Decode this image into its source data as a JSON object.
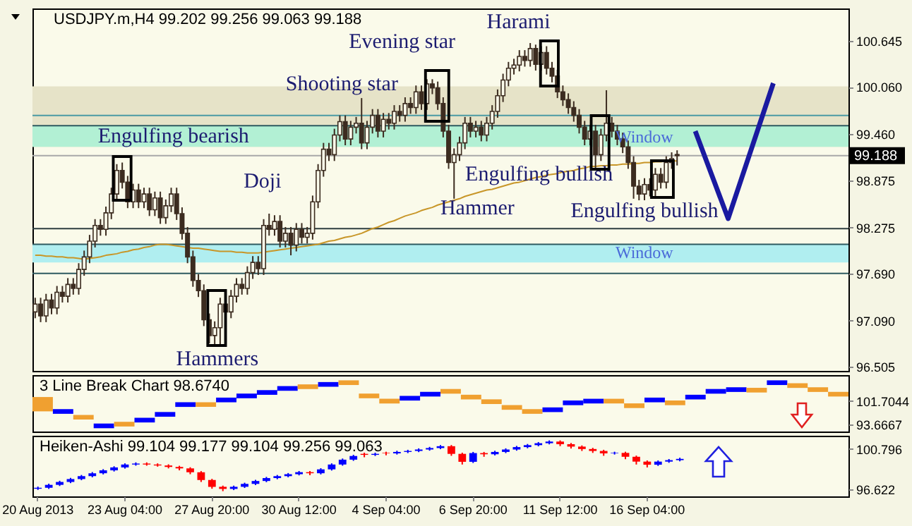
{
  "chart_data": [
    {
      "type": "candlestick",
      "title": "USDJPY.m,H4  99.202 99.256 99.063 99.188",
      "tick_labels": "y",
      "color": "#3c2c20",
      "categories": [
        null,
        null,
        null,
        null,
        null,
        null,
        null,
        null,
        null,
        null,
        null,
        null,
        null,
        null,
        null,
        null,
        null,
        null,
        null,
        null,
        null,
        null,
        null,
        null,
        null,
        null,
        null,
        null,
        null,
        null,
        null,
        null,
        null,
        null,
        null,
        null,
        null,
        null,
        null,
        null,
        null,
        null,
        null,
        null,
        null,
        null,
        null,
        null,
        null,
        null,
        null,
        null,
        null,
        null,
        null,
        null,
        null,
        null,
        null,
        null,
        null,
        null,
        null,
        null,
        null,
        null,
        null,
        null,
        null,
        null,
        null,
        null,
        null,
        null,
        null,
        null,
        null,
        null,
        null,
        null,
        null,
        null,
        null,
        null,
        null,
        null,
        null,
        null,
        null,
        null,
        null,
        null,
        null,
        null,
        null,
        null,
        null,
        null,
        null,
        null,
        null,
        null,
        null,
        null,
        null,
        null,
        null,
        null,
        null,
        null,
        null,
        null,
        null,
        null,
        null,
        null,
        null,
        null,
        null,
        null,
        null,
        null,
        null,
        null,
        null,
        null,
        null,
        null,
        null,
        null,
        null,
        null,
        null,
        null,
        null,
        null,
        null,
        null,
        null,
        null,
        null,
        null,
        null,
        null,
        null,
        null,
        null,
        null,
        null,
        null
      ],
      "ohlc": [
        [
          97.2,
          97.38,
          97.12,
          97.3
        ],
        [
          97.3,
          97.38,
          97.07,
          97.15
        ],
        [
          97.15,
          97.43,
          97.07,
          97.35
        ],
        [
          97.35,
          97.43,
          97.17,
          97.25
        ],
        [
          97.25,
          97.53,
          97.17,
          97.45
        ],
        [
          97.45,
          97.53,
          97.32,
          97.4
        ],
        [
          97.4,
          97.63,
          97.32,
          97.55
        ],
        [
          97.55,
          97.63,
          97.42,
          97.5
        ],
        [
          97.5,
          97.82,
          97.42,
          97.74
        ],
        [
          97.74,
          97.98,
          97.66,
          97.9
        ],
        [
          97.9,
          98.18,
          97.82,
          98.1
        ],
        [
          98.1,
          98.38,
          98.02,
          98.3
        ],
        [
          98.3,
          98.38,
          98.17,
          98.25
        ],
        [
          98.25,
          98.54,
          98.17,
          98.46
        ],
        [
          98.46,
          98.78,
          98.38,
          98.7
        ],
        [
          98.7,
          99.08,
          98.62,
          99
        ],
        [
          99,
          99.1,
          98.77,
          98.85
        ],
        [
          98.85,
          98.93,
          98.52,
          98.6
        ],
        [
          98.6,
          98.83,
          98.52,
          98.75
        ],
        [
          98.75,
          98.83,
          98.52,
          98.6
        ],
        [
          98.6,
          98.78,
          98.52,
          98.7
        ],
        [
          98.7,
          98.78,
          98.42,
          98.5
        ],
        [
          98.5,
          98.73,
          98.42,
          98.65
        ],
        [
          98.65,
          98.73,
          98.32,
          98.4
        ],
        [
          98.4,
          98.63,
          98.32,
          98.55
        ],
        [
          98.55,
          98.78,
          98.47,
          98.7
        ],
        [
          98.7,
          98.78,
          98.37,
          98.45
        ],
        [
          98.45,
          98.53,
          98.12,
          98.2
        ],
        [
          98.2,
          98.28,
          97.82,
          97.9
        ],
        [
          97.9,
          97.98,
          97.52,
          97.6
        ],
        [
          97.6,
          97.68,
          97.39,
          97.47
        ],
        [
          97.47,
          97.55,
          97.02,
          97.1
        ],
        [
          97.1,
          97.18,
          96.8,
          96.9
        ],
        [
          96.9,
          97.08,
          96.76,
          97
        ],
        [
          97,
          97.38,
          96.76,
          97.3
        ],
        [
          97.3,
          97.38,
          97.12,
          97.2
        ],
        [
          97.2,
          97.48,
          97.12,
          97.4
        ],
        [
          97.4,
          97.63,
          97.32,
          97.55
        ],
        [
          97.55,
          97.63,
          97.42,
          97.5
        ],
        [
          97.5,
          97.78,
          97.42,
          97.7
        ],
        [
          97.7,
          97.91,
          97.62,
          97.83
        ],
        [
          97.83,
          97.91,
          97.67,
          97.75
        ],
        [
          97.75,
          98.38,
          97.67,
          98.3
        ],
        [
          98.3,
          98.45,
          98.17,
          98.25
        ],
        [
          98.25,
          98.43,
          98.17,
          98.35
        ],
        [
          98.35,
          98.43,
          98.02,
          98.1
        ],
        [
          98.1,
          98.28,
          98.02,
          98.2
        ],
        [
          98.2,
          98.28,
          97.92,
          98.05
        ],
        [
          98.05,
          98.33,
          97.97,
          98.25
        ],
        [
          98.25,
          98.33,
          98.07,
          98.15
        ],
        [
          98.15,
          98.28,
          98.07,
          98.2
        ],
        [
          98.2,
          98.68,
          98.12,
          98.6
        ],
        [
          98.6,
          99.08,
          98.52,
          99
        ],
        [
          99,
          99.35,
          98.92,
          99.27
        ],
        [
          99.27,
          99.35,
          99.12,
          99.2
        ],
        [
          99.2,
          99.53,
          99.12,
          99.45
        ],
        [
          99.45,
          99.7,
          99.37,
          99.62
        ],
        [
          99.62,
          99.7,
          99.32,
          99.4
        ],
        [
          99.4,
          99.63,
          99.32,
          99.55
        ],
        [
          99.55,
          99.68,
          99.47,
          99.6
        ],
        [
          99.6,
          99.92,
          99.27,
          99.35
        ],
        [
          99.35,
          99.63,
          99.27,
          99.55
        ],
        [
          99.55,
          99.78,
          99.47,
          99.7
        ],
        [
          99.7,
          99.78,
          99.42,
          99.5
        ],
        [
          99.5,
          99.73,
          99.42,
          99.65
        ],
        [
          99.65,
          99.73,
          99.52,
          99.6
        ],
        [
          99.6,
          99.83,
          99.52,
          99.75
        ],
        [
          99.75,
          99.83,
          99.62,
          99.7
        ],
        [
          99.7,
          99.93,
          99.62,
          99.85
        ],
        [
          99.85,
          99.93,
          99.72,
          99.8
        ],
        [
          99.8,
          100.08,
          99.72,
          100
        ],
        [
          100,
          100.08,
          99.77,
          99.85
        ],
        [
          99.85,
          100.16,
          99.77,
          100.1
        ],
        [
          100.1,
          100.16,
          99.97,
          100.05
        ],
        [
          100.05,
          100.13,
          99.77,
          99.85
        ],
        [
          99.85,
          99.93,
          99.42,
          99.5
        ],
        [
          99.5,
          99.58,
          99.02,
          99.1
        ],
        [
          99.1,
          99.28,
          98.64,
          99.2
        ],
        [
          99.2,
          99.43,
          99.12,
          99.35
        ],
        [
          99.35,
          99.68,
          99.27,
          99.6
        ],
        [
          99.6,
          99.68,
          99.42,
          99.5
        ],
        [
          99.5,
          99.63,
          99.42,
          99.55
        ],
        [
          99.55,
          99.63,
          99.37,
          99.45
        ],
        [
          99.45,
          99.68,
          99.37,
          99.6
        ],
        [
          99.6,
          99.83,
          99.52,
          99.75
        ],
        [
          99.75,
          100.03,
          99.67,
          99.95
        ],
        [
          99.95,
          100.23,
          99.87,
          100.15
        ],
        [
          100.15,
          100.38,
          100.07,
          100.3
        ],
        [
          100.3,
          100.42,
          100.22,
          100.34
        ],
        [
          100.34,
          100.53,
          100.26,
          100.45
        ],
        [
          100.45,
          100.53,
          100.32,
          100.4
        ],
        [
          100.4,
          100.62,
          100.32,
          100.55
        ],
        [
          100.55,
          100.6,
          100.27,
          100.35
        ],
        [
          100.35,
          100.58,
          100.27,
          100.5
        ],
        [
          100.5,
          100.58,
          100.22,
          100.3
        ],
        [
          100.3,
          100.38,
          100.12,
          100.2
        ],
        [
          100.2,
          100.28,
          99.92,
          100
        ],
        [
          100,
          100.08,
          99.82,
          99.9
        ],
        [
          99.9,
          99.98,
          99.72,
          99.8
        ],
        [
          99.8,
          99.88,
          99.62,
          99.7
        ],
        [
          99.7,
          99.78,
          99.47,
          99.55
        ],
        [
          99.55,
          99.63,
          99.32,
          99.4
        ],
        [
          99.4,
          99.58,
          99.32,
          99.5
        ],
        [
          99.5,
          99.58,
          99.03,
          99.2
        ],
        [
          99.2,
          99.53,
          99.12,
          99.45
        ],
        [
          99.45,
          100.02,
          99.37,
          99.6
        ],
        [
          99.6,
          99.68,
          99.42,
          99.5
        ],
        [
          99.5,
          99.58,
          99.32,
          99.4
        ],
        [
          99.4,
          99.48,
          99.22,
          99.3
        ],
        [
          99.3,
          99.38,
          99.02,
          99.1
        ],
        [
          99.1,
          99.18,
          98.64,
          98.8
        ],
        [
          98.8,
          98.88,
          98.62,
          98.7
        ],
        [
          98.7,
          98.9,
          98.62,
          98.82
        ],
        [
          98.82,
          98.9,
          98.67,
          98.75
        ],
        [
          98.75,
          99.03,
          98.67,
          98.95
        ],
        [
          98.95,
          99.03,
          98.77,
          98.85
        ],
        [
          98.85,
          99.18,
          98.77,
          99.1
        ],
        [
          99.1,
          99.23,
          99.02,
          99.15
        ],
        [
          99.202,
          99.256,
          99.063,
          99.188
        ],
        null,
        null,
        null,
        null,
        null,
        null,
        null,
        null,
        null,
        null,
        null,
        null,
        null,
        null,
        null,
        null,
        null,
        null,
        null,
        null,
        null,
        null,
        null,
        null,
        null,
        null,
        null,
        null,
        null,
        null,
        null
      ],
      "series": [
        {
          "type": "line",
          "color": "#c89628",
          "values": [
            97.92,
            97.92,
            97.91,
            97.91,
            97.9,
            97.9,
            97.89,
            97.89,
            97.88,
            97.87,
            97.88,
            97.89,
            97.9,
            97.92,
            97.93,
            97.94,
            97.96,
            97.97,
            97.99,
            98,
            98.02,
            98.03,
            98.05,
            98.06,
            98.06,
            98.05,
            98.04,
            98.03,
            98.02,
            98.01,
            98.01,
            98,
            97.99,
            97.98,
            97.97,
            97.97,
            97.97,
            97.96,
            97.96,
            97.95,
            97.95,
            97.95,
            97.96,
            97.97,
            97.98,
            97.99,
            98,
            98.01,
            98.02,
            98.03,
            98.04,
            98.05,
            98.06,
            98.08,
            98.1,
            98.11,
            98.13,
            98.15,
            98.16,
            98.18,
            98.2,
            98.23,
            98.26,
            98.28,
            98.31,
            98.34,
            98.36,
            98.39,
            98.42,
            98.44,
            98.46,
            98.49,
            98.51,
            98.53,
            98.56,
            98.58,
            98.6,
            98.62,
            98.64,
            98.67,
            98.69,
            98.71,
            98.73,
            98.75,
            98.76,
            98.78,
            98.8,
            98.82,
            98.84,
            98.85,
            98.87,
            98.89,
            98.91,
            98.92,
            98.94,
            98.95,
            98.96,
            98.98,
            98.99,
            99,
            99.02,
            99.03,
            99.05,
            99.05,
            99.06,
            99.06,
            99.07,
            99.07,
            99.08,
            99.08,
            99.09,
            99.09,
            99.1,
            99.1,
            99.11,
            99.11,
            99.12,
            99.12,
            99.12,
            null,
            null,
            null,
            null,
            null,
            null,
            null,
            null,
            null,
            null,
            null,
            null,
            null,
            null,
            null,
            null,
            null,
            null,
            null,
            null,
            null,
            null,
            null,
            null,
            null,
            null,
            null,
            null,
            null,
            null,
            null
          ]
        }
      ],
      "ylim": [
        96.45,
        101.06
      ],
      "yticks": [
        100.645,
        {
          "value": 100.06,
          "label": "100.060"
        },
        {
          "value": 99.46,
          "label": "99.460"
        },
        98.875,
        98.275,
        {
          "value": 97.69,
          "label": "97.690"
        },
        {
          "value": 97.09,
          "label": "97.090"
        },
        96.505
      ],
      "bands": [
        {
          "axis": "y",
          "from": 99.3,
          "to": 100.07,
          "color": "#e6e3c8"
        },
        {
          "axis": "y",
          "from": 99.3,
          "to": 99.57,
          "color": "#b2f0d4",
          "label": "Window"
        },
        {
          "axis": "y",
          "from": 97.83,
          "to": 98.06,
          "color": "#b0eef0",
          "label": "Window"
        }
      ],
      "ref_lines": [
        {
          "axis": "y",
          "value": 99.7,
          "color": "#4a9aa4"
        },
        {
          "axis": "y",
          "value": 99.57,
          "color": "#2e5a60"
        },
        {
          "axis": "y",
          "value": 98.26,
          "color": "#2e3e40"
        },
        {
          "axis": "y",
          "value": 98.06,
          "color": "#2e5a60"
        },
        {
          "axis": "y",
          "value": 97.69,
          "color": "#2e5a60"
        },
        {
          "axis": "y",
          "value": 99.188,
          "label": "99.188",
          "color": "#a8a8a8"
        }
      ],
      "annotations": [
        "Engulfing bearish",
        "Doji",
        "Shooting star",
        "Evening star",
        "Hammer",
        "Harami",
        "Engulfing bullish",
        "Engulfing bullish",
        "Hammers"
      ]
    },
    {
      "type": "bar",
      "title": "3 Line Break Chart 98.6740",
      "tick_labels": "y",
      "categories": [
        null,
        null,
        null,
        null,
        null,
        null,
        null,
        null,
        null,
        null,
        null,
        null,
        null,
        null,
        null,
        null,
        null,
        null,
        null,
        null,
        null,
        null,
        null,
        null,
        null,
        null,
        null,
        null,
        null,
        null,
        null,
        null,
        null,
        null,
        null,
        null,
        null,
        null,
        null,
        null
      ],
      "base": [
        98.2,
        97.36,
        95.39,
        92.43,
        93.02,
        94.4,
        96.37,
        99.72,
        99.72,
        101.3,
        102.68,
        103.86,
        105.24,
        105.83,
        106.62,
        107.21,
        102.68,
        100.9,
        101.89,
        103.27,
        104.25,
        102.28,
        100.71,
        98.74,
        97.36,
        97.95,
        100.31,
        100.9,
        100.9,
        99.33,
        101.3,
        100.31,
        102.28,
        104.25,
        104.84,
        104.65,
        107.21,
        106.22,
        104.84,
        103.27
      ],
      "values": [
        4.9,
        1.6,
        1.6,
        1.6,
        1.6,
        1.6,
        1.6,
        1.6,
        1.6,
        1.6,
        1.6,
        1.6,
        1.6,
        1.6,
        1.6,
        1.6,
        1.6,
        1.6,
        1.6,
        1.6,
        1.6,
        1.6,
        1.6,
        1.6,
        1.6,
        1.6,
        1.6,
        1.6,
        1.6,
        1.6,
        1.6,
        1.6,
        1.6,
        1.6,
        1.6,
        1.6,
        1.6,
        1.6,
        1.6,
        1.6
      ],
      "colors": [
        "#f0a030",
        "#0000ff",
        "#f0a030",
        "#0000ff",
        "#f0a030",
        "#0000ff",
        "#0000ff",
        "#0000ff",
        "#f0a030",
        "#0000ff",
        "#0000ff",
        "#0000ff",
        "#0000ff",
        "#f0a030",
        "#0000ff",
        "#f0a030",
        "#f0a030",
        "#f0a030",
        "#0000ff",
        "#0000ff",
        "#f0a030",
        "#f0a030",
        "#f0a030",
        "#f0a030",
        "#f0a030",
        "#0000ff",
        "#0000ff",
        "#0000ff",
        "#f0a030",
        "#f0a030",
        "#0000ff",
        "#f0a030",
        "#0000ff",
        "#0000ff",
        "#0000ff",
        "#f0a030",
        "#0000ff",
        "#f0a030",
        "#f0a030",
        "#f0a030"
      ],
      "ylim": [
        91.3,
        110.6
      ],
      "yticks": [
        {
          "value": 101.7044,
          "label": "101.7044"
        },
        {
          "value": 93.6667,
          "label": "93.6667"
        }
      ]
    },
    {
      "type": "candlestick",
      "title": "Heiken-Ashi 99.104 99.177 99.104 99.256 99.063",
      "colors": [
        "#0000ff",
        "#0000ff",
        "#0000ff",
        "#0000ff",
        "#0000ff",
        "#0000ff",
        "#0000ff",
        "#0000ff",
        "#0000ff",
        "#0000ff",
        "#ff0000",
        "#ff0000",
        "#ff0000",
        "#ff0000",
        "#ff0000",
        "#ff0000",
        "#ff0000",
        "#ff0000",
        "#0000ff",
        "#0000ff",
        "#0000ff",
        "#0000ff",
        "#0000ff",
        "#0000ff",
        "#0000ff",
        "#ff0000",
        "#0000ff",
        "#0000ff",
        "#0000ff",
        "#0000ff",
        "#ff0000",
        "#0000ff",
        "#ff0000",
        "#0000ff",
        "#0000ff",
        "#0000ff",
        "#0000ff",
        "#0000ff",
        "#ff0000",
        "#ff0000",
        "#0000ff",
        "#ff0000",
        "#0000ff",
        "#0000ff",
        "#0000ff",
        "#0000ff",
        "#0000ff",
        "#0000ff",
        "#ff0000",
        "#ff0000",
        "#ff0000",
        "#ff0000",
        "#ff0000",
        "#0000ff",
        "#ff0000",
        "#ff0000",
        "#ff0000",
        "#0000ff",
        "#0000ff",
        "#0000ff",
        null,
        null,
        null,
        null,
        null,
        null,
        null,
        null,
        null,
        null,
        null,
        null,
        null,
        null,
        null
      ],
      "categories": [
        "20 Aug 2013",
        null,
        null,
        null,
        null,
        null,
        null,
        null,
        "23 Aug 04:00",
        null,
        null,
        null,
        null,
        null,
        null,
        null,
        "27 Aug 20:00",
        null,
        null,
        null,
        null,
        null,
        null,
        null,
        "30 Aug 12:00",
        null,
        null,
        null,
        null,
        null,
        null,
        null,
        "4 Sep 04:00",
        null,
        null,
        null,
        null,
        null,
        null,
        null,
        "6 Sep 20:00",
        null,
        null,
        null,
        null,
        null,
        null,
        null,
        "11 Sep 12:00",
        null,
        null,
        null,
        null,
        null,
        null,
        null,
        "16 Sep 04:00",
        null,
        null,
        null,
        null,
        null,
        null,
        null,
        null,
        null,
        null,
        null,
        null,
        null,
        null,
        null,
        null,
        null,
        null
      ],
      "ohlc": [
        [
          96.7,
          96.92,
          96.58,
          96.8
        ],
        [
          96.8,
          97.22,
          96.68,
          97.1
        ],
        [
          97.1,
          97.52,
          96.98,
          97.4
        ],
        [
          97.4,
          97.82,
          97.28,
          97.7
        ],
        [
          97.7,
          98.12,
          97.58,
          98
        ],
        [
          98,
          98.42,
          97.88,
          98.3
        ],
        [
          98.3,
          98.72,
          98.18,
          98.6
        ],
        [
          98.6,
          99.02,
          98.48,
          98.9
        ],
        [
          98.9,
          99.32,
          98.78,
          99.2
        ],
        [
          99.2,
          99.42,
          99.08,
          99.3
        ],
        [
          99.3,
          99.42,
          99.08,
          99.2
        ],
        [
          99.2,
          99.32,
          98.98,
          99.1
        ],
        [
          99.1,
          99.22,
          98.8,
          98.95
        ],
        [
          98.95,
          99.07,
          98.6,
          98.8
        ],
        [
          98.8,
          98.92,
          98.2,
          98.4
        ],
        [
          98.4,
          98.52,
          97.4,
          97.6
        ],
        [
          97.6,
          97.72,
          96.7,
          96.9
        ],
        [
          96.9,
          97.02,
          96.45,
          96.68
        ],
        [
          96.68,
          97.02,
          96.56,
          96.9
        ],
        [
          96.9,
          97.32,
          96.78,
          97.2
        ],
        [
          97.2,
          97.62,
          97.08,
          97.5
        ],
        [
          97.5,
          97.92,
          97.38,
          97.8
        ],
        [
          97.8,
          98.12,
          97.68,
          98
        ],
        [
          98,
          98.32,
          97.88,
          98.2
        ],
        [
          98.2,
          98.53,
          98.08,
          98.41
        ],
        [
          98.41,
          98.53,
          98.1,
          98.3
        ],
        [
          98.3,
          98.82,
          98.18,
          98.7
        ],
        [
          98.7,
          99.32,
          98.58,
          99.2
        ],
        [
          99.2,
          99.82,
          99.08,
          99.7
        ],
        [
          99.7,
          100.2,
          99.58,
          100.08
        ],
        [
          100.3,
          100.42,
          99.95,
          100.2
        ],
        [
          100.2,
          100.42,
          100.08,
          100.3
        ],
        [
          100.4,
          100.52,
          100.15,
          100.35
        ],
        [
          100.35,
          100.62,
          100.23,
          100.5
        ],
        [
          100.5,
          100.72,
          100.38,
          100.6
        ],
        [
          100.6,
          100.87,
          100.48,
          100.75
        ],
        [
          100.75,
          101.02,
          100.63,
          100.9
        ],
        [
          100.9,
          101.21,
          100.78,
          101.09
        ],
        [
          101.09,
          101.21,
          100.1,
          100.3
        ],
        [
          100.3,
          100.42,
          99.2,
          99.48
        ],
        [
          99.48,
          100.5,
          99.36,
          100.38
        ],
        [
          100.38,
          100.5,
          100,
          100.26
        ],
        [
          100.26,
          100.62,
          100.14,
          100.5
        ],
        [
          100.5,
          100.87,
          100.38,
          100.75
        ],
        [
          100.75,
          101.12,
          100.63,
          101
        ],
        [
          101,
          101.32,
          100.88,
          101.2
        ],
        [
          101.2,
          101.52,
          101.08,
          101.4
        ],
        [
          101.4,
          101.69,
          101.28,
          101.57
        ],
        [
          101.57,
          101.69,
          101.1,
          101.3
        ],
        [
          101.3,
          101.42,
          100.85,
          101.05
        ],
        [
          101.05,
          101.17,
          100.6,
          100.8
        ],
        [
          100.8,
          100.92,
          100.4,
          100.6
        ],
        [
          100.6,
          100.72,
          100.1,
          100.35
        ],
        [
          100.35,
          100.52,
          100.23,
          100.4
        ],
        [
          100.4,
          100.52,
          99.75,
          100
        ],
        [
          100,
          100.12,
          99.2,
          99.5
        ],
        [
          99.5,
          99.62,
          98.9,
          99.18
        ],
        [
          99.18,
          99.62,
          99.06,
          99.5
        ],
        [
          99.5,
          99.77,
          99.38,
          99.65
        ],
        [
          99.65,
          99.9,
          99.53,
          99.78
        ],
        null,
        null,
        null,
        null,
        null,
        null,
        null,
        null,
        null,
        null,
        null,
        null,
        null,
        null,
        null
      ],
      "ylim": [
        95.91,
        102.17
      ],
      "yticks": [
        100.796,
        96.622
      ]
    }
  ]
}
